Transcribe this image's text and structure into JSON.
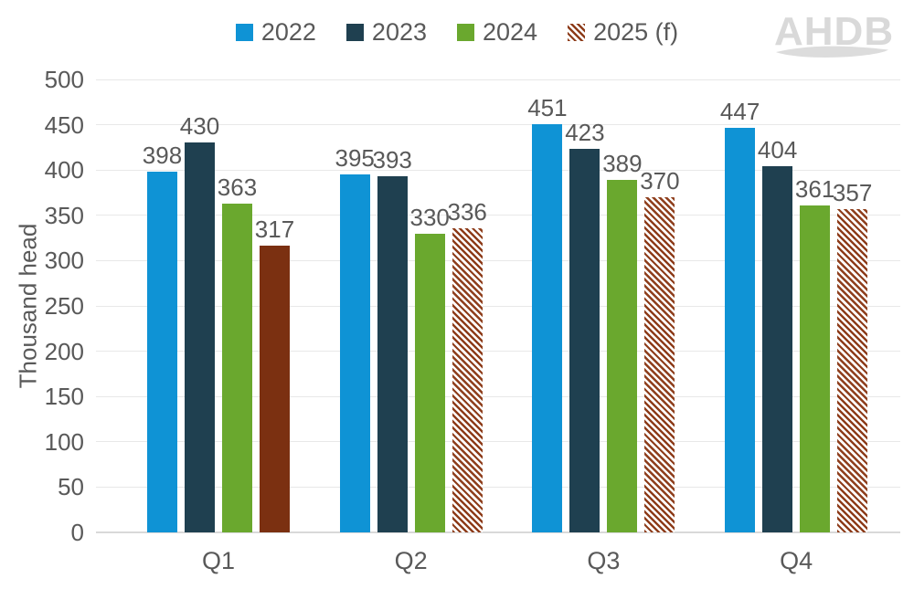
{
  "logo": {
    "text": "AHDB"
  },
  "colors": {
    "text": "#595959",
    "gridline": "#e8e8e8",
    "axis_line": "#d9d9d9",
    "logo": "#d9d9d9",
    "hatch_background": "#ffffff"
  },
  "chart_data": {
    "type": "bar",
    "title": "",
    "xlabel": "",
    "ylabel": "Thousand head",
    "ylim": [
      0,
      500
    ],
    "yticks": [
      0,
      50,
      100,
      150,
      200,
      250,
      300,
      350,
      400,
      450,
      500
    ],
    "grid": true,
    "legend_position": "top",
    "categories": [
      "Q1",
      "Q2",
      "Q3",
      "Q4"
    ],
    "series": [
      {
        "name": "2022",
        "color": "#0f93d5",
        "pattern": "solid",
        "values": [
          398,
          395,
          451,
          447
        ]
      },
      {
        "name": "2023",
        "color": "#1f4050",
        "pattern": "solid",
        "values": [
          430,
          393,
          423,
          404
        ]
      },
      {
        "name": "2024",
        "color": "#6aa82e",
        "pattern": "solid",
        "values": [
          363,
          330,
          389,
          361
        ]
      },
      {
        "name": "2025 (f)",
        "color": "#7b3011",
        "pattern": "hatch",
        "stripe_color": "#8e3d1b",
        "bar_patterns": [
          "solid",
          "hatch",
          "hatch",
          "hatch"
        ],
        "values": [
          317,
          336,
          370,
          357
        ]
      }
    ]
  }
}
